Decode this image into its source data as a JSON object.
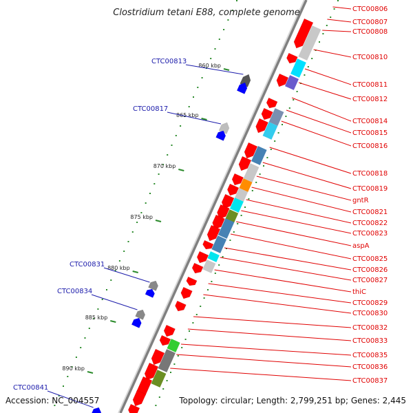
{
  "title": "Clostridium tetani E88, complete genome",
  "footer": {
    "accession": "Accession: NC_004557",
    "topology": "Topology: circular; Length: 2,799,251 bp; Genes: 2,445"
  },
  "ticks": [
    {
      "label": "860 kbp"
    },
    {
      "label": "865 kbp"
    },
    {
      "label": "870 kbp"
    },
    {
      "label": "875 kbp"
    },
    {
      "label": "880 kbp"
    },
    {
      "label": "885 kbp"
    },
    {
      "label": "890 kbp"
    }
  ],
  "right_labels": [
    "CTC00806",
    "CTC00807",
    "CTC00808",
    "CTC00810",
    "CTC00811",
    "CTC00812",
    "CTC00814",
    "CTC00815",
    "CTC00816",
    "CTC00818",
    "CTC00819",
    "gntR",
    "CTC00821",
    "CTC00822",
    "CTC00823",
    "aspA",
    "CTC00825",
    "CTC00826",
    "CTC00827",
    "thiC",
    "CTC00829",
    "CTC00830",
    "CTC00832",
    "CTC00833",
    "CTC00835",
    "CTC00836",
    "CTC00837"
  ],
  "left_labels": [
    "CTC00813",
    "CTC00817",
    "CTC00831",
    "CTC00834",
    "CTC00841"
  ],
  "colors": {
    "forward_gene": "#ff0000",
    "reverse_gene": "#0000ff",
    "backbone": "#808080",
    "label_red": "#e00000",
    "label_blue": "#1a1aaa",
    "tick": "#2a8a2a"
  }
}
